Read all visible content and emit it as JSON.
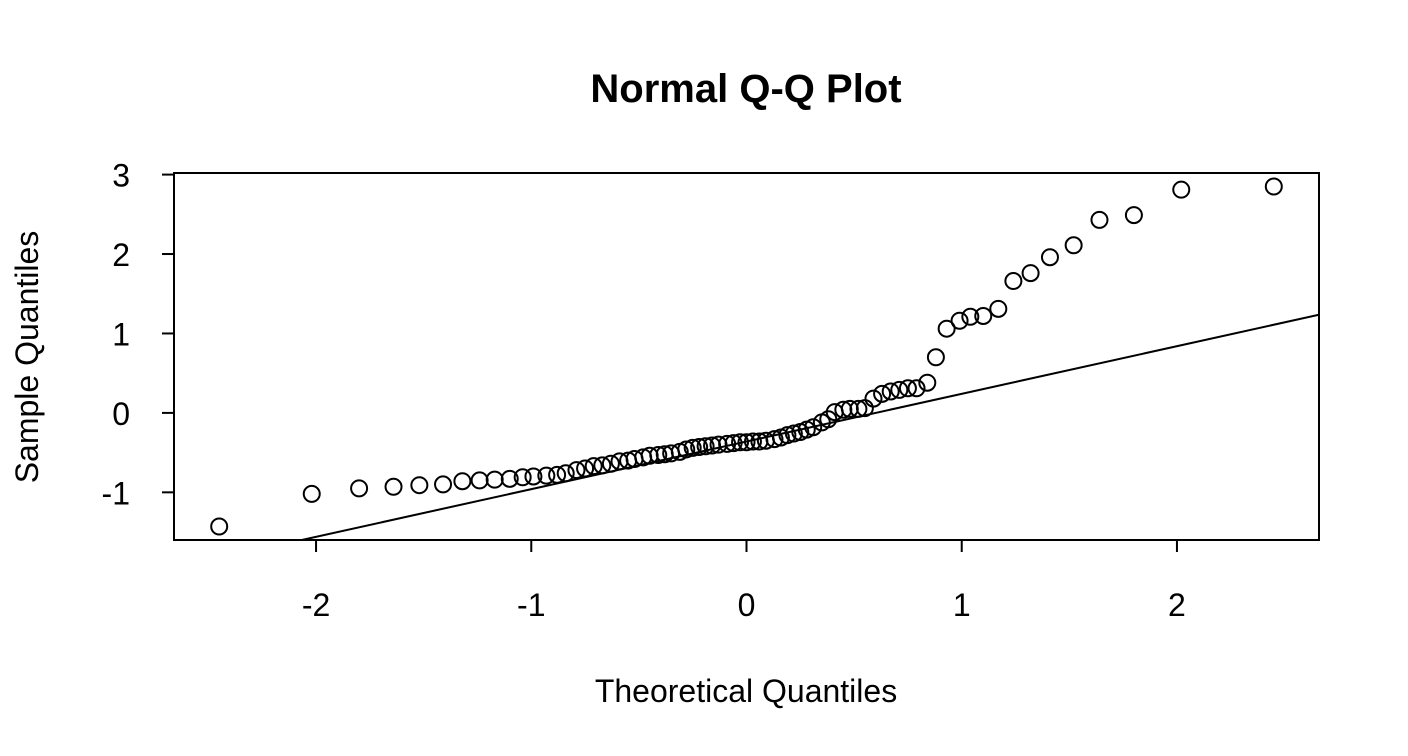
{
  "chart_data": {
    "type": "scatter",
    "title": "Normal Q-Q Plot",
    "xlabel": "Theoretical Quantiles",
    "ylabel": "Sample Quantiles",
    "xlim": [
      -2.66,
      2.66
    ],
    "ylim": [
      -1.6,
      3.02
    ],
    "x_ticks": [
      -2,
      -1,
      0,
      1,
      2
    ],
    "y_ticks": [
      -1,
      0,
      1,
      2,
      3
    ],
    "x_tick_labels": [
      "-2",
      "-1",
      "0",
      "1",
      "2"
    ],
    "y_tick_labels": [
      "-1",
      "0",
      "1",
      "2",
      "3"
    ],
    "grid": false,
    "reference_line": {
      "slope": 0.6,
      "intercept": -0.36
    },
    "points": [
      {
        "x": -2.45,
        "y": -1.43
      },
      {
        "x": -2.02,
        "y": -1.02
      },
      {
        "x": -1.8,
        "y": -0.95
      },
      {
        "x": -1.64,
        "y": -0.93
      },
      {
        "x": -1.52,
        "y": -0.91
      },
      {
        "x": -1.41,
        "y": -0.9
      },
      {
        "x": -1.32,
        "y": -0.86
      },
      {
        "x": -1.24,
        "y": -0.85
      },
      {
        "x": -1.17,
        "y": -0.84
      },
      {
        "x": -1.1,
        "y": -0.83
      },
      {
        "x": -1.04,
        "y": -0.81
      },
      {
        "x": -0.99,
        "y": -0.8
      },
      {
        "x": -0.93,
        "y": -0.79
      },
      {
        "x": -0.88,
        "y": -0.78
      },
      {
        "x": -0.84,
        "y": -0.76
      },
      {
        "x": -0.79,
        "y": -0.72
      },
      {
        "x": -0.75,
        "y": -0.7
      },
      {
        "x": -0.71,
        "y": -0.67
      },
      {
        "x": -0.67,
        "y": -0.66
      },
      {
        "x": -0.63,
        "y": -0.64
      },
      {
        "x": -0.59,
        "y": -0.61
      },
      {
        "x": -0.55,
        "y": -0.6
      },
      {
        "x": -0.52,
        "y": -0.58
      },
      {
        "x": -0.48,
        "y": -0.56
      },
      {
        "x": -0.45,
        "y": -0.54
      },
      {
        "x": -0.41,
        "y": -0.53
      },
      {
        "x": -0.38,
        "y": -0.52
      },
      {
        "x": -0.35,
        "y": -0.51
      },
      {
        "x": -0.31,
        "y": -0.49
      },
      {
        "x": -0.28,
        "y": -0.46
      },
      {
        "x": -0.25,
        "y": -0.44
      },
      {
        "x": -0.22,
        "y": -0.43
      },
      {
        "x": -0.19,
        "y": -0.42
      },
      {
        "x": -0.16,
        "y": -0.41
      },
      {
        "x": -0.13,
        "y": -0.4
      },
      {
        "x": -0.09,
        "y": -0.39
      },
      {
        "x": -0.06,
        "y": -0.38
      },
      {
        "x": -0.03,
        "y": -0.37
      },
      {
        "x": 0.0,
        "y": -0.37
      },
      {
        "x": 0.03,
        "y": -0.36
      },
      {
        "x": 0.06,
        "y": -0.36
      },
      {
        "x": 0.09,
        "y": -0.35
      },
      {
        "x": 0.13,
        "y": -0.33
      },
      {
        "x": 0.16,
        "y": -0.31
      },
      {
        "x": 0.19,
        "y": -0.28
      },
      {
        "x": 0.22,
        "y": -0.26
      },
      {
        "x": 0.25,
        "y": -0.24
      },
      {
        "x": 0.28,
        "y": -0.21
      },
      {
        "x": 0.31,
        "y": -0.18
      },
      {
        "x": 0.35,
        "y": -0.12
      },
      {
        "x": 0.38,
        "y": -0.08
      },
      {
        "x": 0.41,
        "y": 0.01
      },
      {
        "x": 0.45,
        "y": 0.04
      },
      {
        "x": 0.48,
        "y": 0.05
      },
      {
        "x": 0.52,
        "y": 0.05
      },
      {
        "x": 0.55,
        "y": 0.06
      },
      {
        "x": 0.59,
        "y": 0.18
      },
      {
        "x": 0.63,
        "y": 0.24
      },
      {
        "x": 0.67,
        "y": 0.27
      },
      {
        "x": 0.71,
        "y": 0.29
      },
      {
        "x": 0.75,
        "y": 0.31
      },
      {
        "x": 0.79,
        "y": 0.31
      },
      {
        "x": 0.84,
        "y": 0.38
      },
      {
        "x": 0.88,
        "y": 0.7
      },
      {
        "x": 0.93,
        "y": 1.06
      },
      {
        "x": 0.99,
        "y": 1.16
      },
      {
        "x": 1.04,
        "y": 1.21
      },
      {
        "x": 1.1,
        "y": 1.22
      },
      {
        "x": 1.17,
        "y": 1.31
      },
      {
        "x": 1.24,
        "y": 1.66
      },
      {
        "x": 1.32,
        "y": 1.76
      },
      {
        "x": 1.41,
        "y": 1.96
      },
      {
        "x": 1.52,
        "y": 2.11
      },
      {
        "x": 1.64,
        "y": 2.43
      },
      {
        "x": 1.8,
        "y": 2.49
      },
      {
        "x": 2.02,
        "y": 2.81
      },
      {
        "x": 2.45,
        "y": 2.85
      }
    ]
  }
}
